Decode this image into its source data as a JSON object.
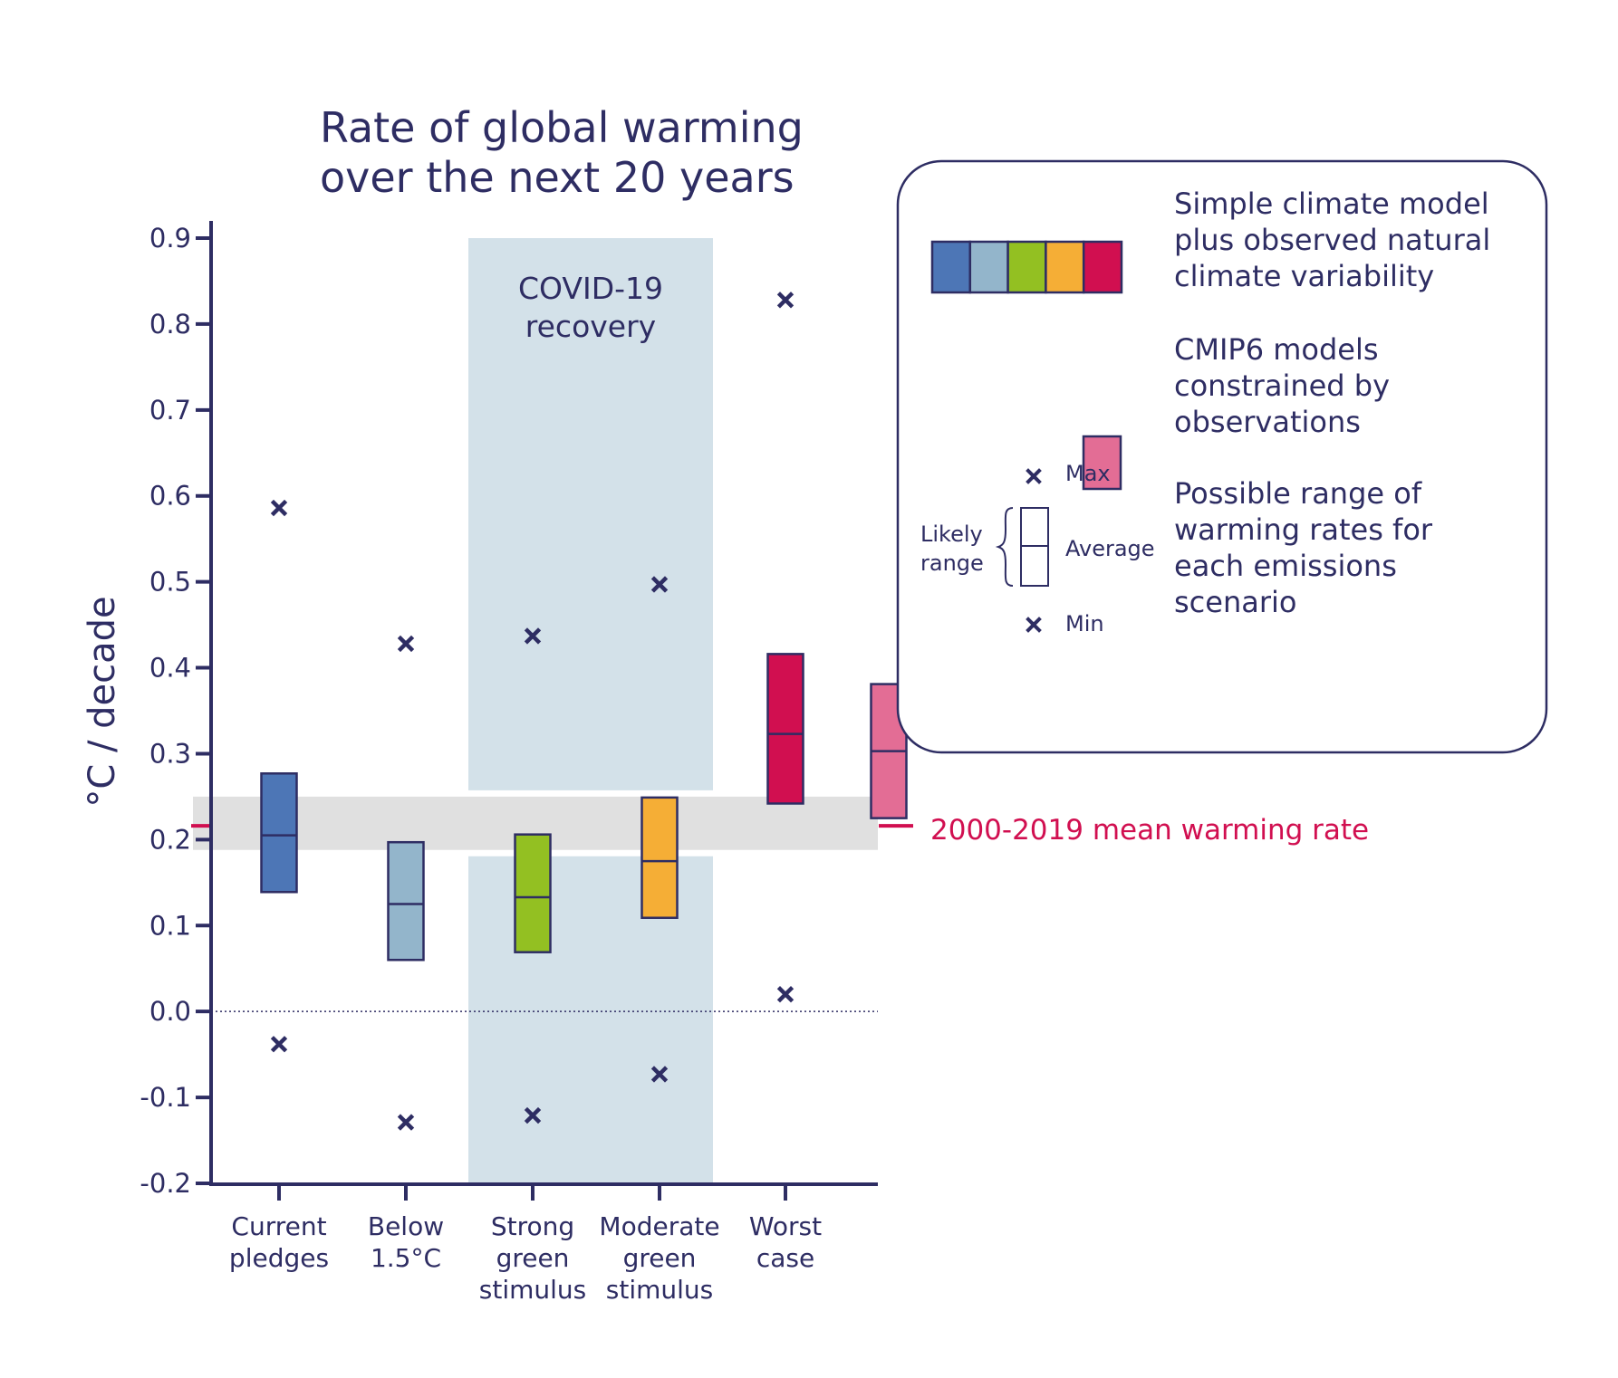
{
  "chart_data": {
    "type": "box",
    "title": "Rate of global warming over the next 20 years",
    "title_lines": [
      "Rate of global warming",
      "over the next 20 years"
    ],
    "xlabel": "",
    "ylabel": "°C / decade",
    "ylim": [
      -0.2,
      0.9
    ],
    "yticks": [
      -0.2,
      -0.1,
      0.0,
      0.1,
      0.2,
      0.3,
      0.4,
      0.5,
      0.6,
      0.7,
      0.8,
      0.9
    ],
    "ytick_labels": [
      "-0.2",
      "-0.1",
      "0.0",
      "0.1",
      "0.2",
      "0.3",
      "0.4",
      "0.5",
      "0.6",
      "0.7",
      "0.8",
      "0.9"
    ],
    "grid": false,
    "categories": [
      {
        "id": "current-pledges",
        "label_lines": [
          "Current",
          "pledges"
        ]
      },
      {
        "id": "below-1-5c",
        "label_lines": [
          "Below",
          "1.5°C"
        ]
      },
      {
        "id": "strong-green-stimulus",
        "label_lines": [
          "Strong",
          "green",
          "stimulus"
        ]
      },
      {
        "id": "moderate-green-stimulus",
        "label_lines": [
          "Moderate",
          "green",
          "stimulus"
        ]
      },
      {
        "id": "worst-case",
        "label_lines": [
          "Worst",
          "case"
        ]
      }
    ],
    "series": [
      {
        "name": "Simple climate model plus observed natural climate variability",
        "boxes": [
          {
            "category": "current-pledges",
            "likely_low": 0.139,
            "average": 0.205,
            "likely_high": 0.277,
            "min": -0.038,
            "max": 0.586,
            "color": "#4d76b6"
          },
          {
            "category": "below-1-5c",
            "likely_low": 0.06,
            "average": 0.125,
            "likely_high": 0.197,
            "min": -0.129,
            "max": 0.428,
            "color": "#93b5cb"
          },
          {
            "category": "strong-green-stimulus",
            "likely_low": 0.069,
            "average": 0.133,
            "likely_high": 0.206,
            "min": -0.121,
            "max": 0.437,
            "color": "#93c022"
          },
          {
            "category": "moderate-green-stimulus",
            "likely_low": 0.109,
            "average": 0.175,
            "likely_high": 0.249,
            "min": -0.073,
            "max": 0.497,
            "color": "#f5ae36"
          },
          {
            "category": "worst-case",
            "likely_low": 0.242,
            "average": 0.323,
            "likely_high": 0.416,
            "min": 0.02,
            "max": 0.828,
            "color": "#d10f50"
          }
        ]
      },
      {
        "name": "CMIP6 models constrained by observations",
        "boxes": [
          {
            "category": "worst-case",
            "likely_low": 0.225,
            "average": 0.303,
            "likely_high": 0.381,
            "color": "#e36d95"
          }
        ]
      }
    ],
    "reference": {
      "label": "2000-2019 mean warming rate",
      "value": 0.216,
      "band": [
        0.188,
        0.25
      ],
      "color": "#d10f50",
      "band_color": "#e0e0e0"
    },
    "shaded_region": {
      "label_lines": [
        "COVID-19",
        "recovery"
      ],
      "categories": [
        "strong-green-stimulus",
        "moderate-green-stimulus"
      ],
      "y_range": [
        -0.2,
        0.9
      ],
      "color": "#d3e1e9"
    },
    "zero_line": {
      "value": 0.0,
      "style": "dotted"
    },
    "legend": {
      "placement": "top-right",
      "entries": [
        {
          "swatches": [
            "#4d76b6",
            "#93b5cb",
            "#93c022",
            "#f5ae36",
            "#d10f50"
          ],
          "label_lines": [
            "Simple climate model",
            "plus observed natural",
            "climate variability"
          ]
        },
        {
          "swatches": [
            "#e36d95"
          ],
          "label_lines": [
            "CMIP6 models",
            "constrained by",
            "observations"
          ]
        },
        {
          "key": {
            "max_label": "Max",
            "average_label": "Average",
            "min_label": "Min",
            "range_label_lines": [
              "Likely",
              "range"
            ]
          },
          "label_lines": [
            "Possible range of",
            "warming rates for",
            "each emissions",
            "scenario"
          ]
        }
      ]
    }
  },
  "colors": {
    "ink": "#2e2d63",
    "accent": "#d10f50"
  }
}
